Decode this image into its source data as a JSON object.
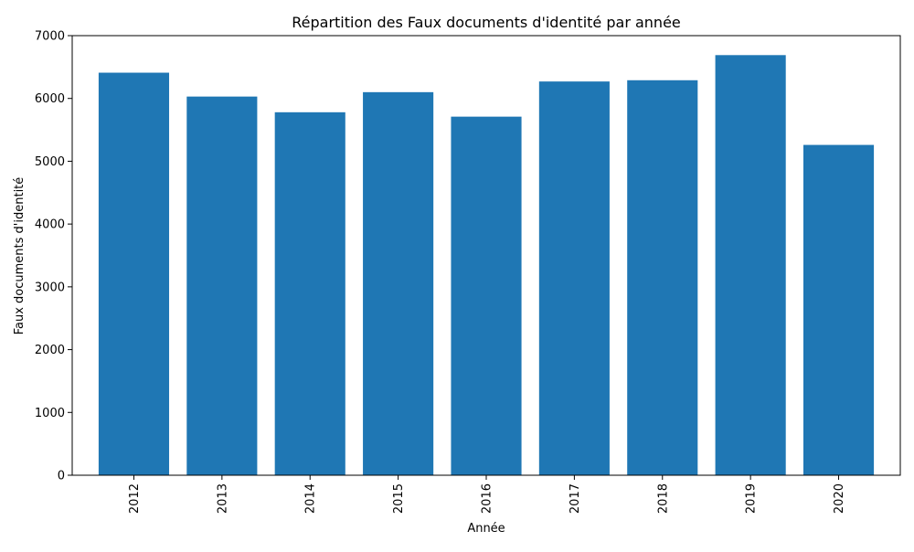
{
  "chart_data": {
    "type": "bar",
    "title": "Répartition des Faux documents d'identité par année",
    "xlabel": "Année",
    "ylabel": "Faux documents d'identité",
    "categories": [
      "2012",
      "2013",
      "2014",
      "2015",
      "2016",
      "2017",
      "2018",
      "2019",
      "2020"
    ],
    "values": [
      6410,
      6030,
      5780,
      6100,
      5710,
      6270,
      6290,
      6690,
      5260
    ],
    "ylim": [
      0,
      7000
    ],
    "yticks": [
      0,
      1000,
      2000,
      3000,
      4000,
      5000,
      6000,
      7000
    ],
    "ytick_labels": [
      "0",
      "1000",
      "2000",
      "3000",
      "4000",
      "5000",
      "6000",
      "7000"
    ],
    "xtick_rotation": "vertical",
    "bar_color": "#1f77b4",
    "grid": false,
    "legend": "none"
  }
}
